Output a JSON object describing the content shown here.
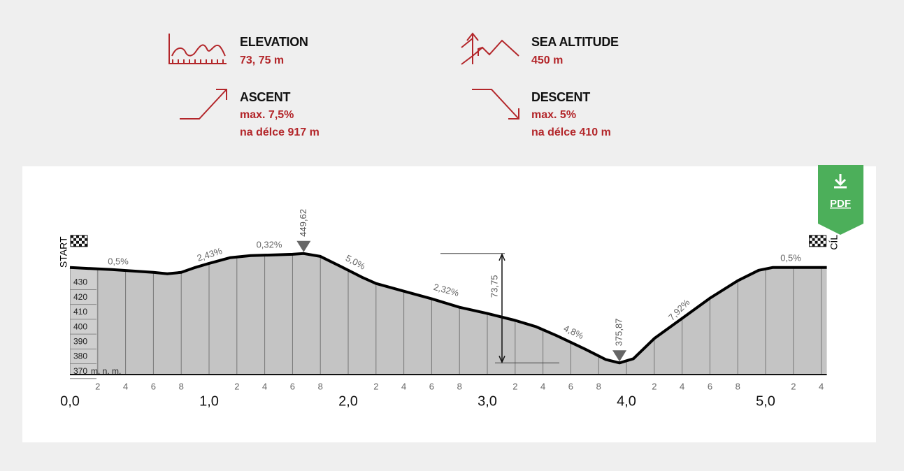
{
  "stats": [
    {
      "label": "ELEVATION",
      "lines": [
        "73, 75 m"
      ]
    },
    {
      "label": "SEA ALTITUDE",
      "lines": [
        "450 m"
      ]
    },
    {
      "label": "ASCENT",
      "lines": [
        "max. 7,5%",
        "na délce 917 m"
      ]
    },
    {
      "label": "DESCENT",
      "lines": [
        "max. 5%",
        "na délce 410 m"
      ]
    }
  ],
  "pdf": "PDF",
  "chart_data": {
    "type": "area",
    "start_label": "START",
    "end_label": "CÍL",
    "y_unit": "m. n. m.",
    "x": [
      0,
      0.3,
      0.6,
      0.7,
      0.8,
      0.9,
      1.0,
      1.15,
      1.3,
      1.6,
      1.68,
      1.8,
      1.95,
      2.1,
      2.2,
      2.4,
      2.6,
      2.8,
      3.0,
      3.2,
      3.35,
      3.5,
      3.7,
      3.85,
      3.95,
      4.05,
      4.2,
      4.4,
      4.6,
      4.8,
      4.95,
      5.05,
      5.44
    ],
    "values": [
      440.2,
      438.8,
      436.9,
      436.0,
      436.9,
      440.2,
      443.0,
      446.8,
      448.2,
      449.1,
      449.62,
      447.7,
      440.7,
      433.6,
      429.4,
      424.2,
      419.1,
      413.4,
      409.2,
      404.5,
      400.3,
      394.2,
      385.3,
      378.2,
      375.87,
      378.7,
      392.3,
      405.9,
      419.5,
      431.3,
      438.3,
      440.2,
      440.2
    ],
    "color": "#c4c4c4",
    "line_color": "#000000",
    "xlim": [
      0,
      5.44
    ],
    "ylim": [
      368,
      450
    ],
    "xticks": [
      {
        "value": 0,
        "label": "0,0"
      },
      {
        "value": 0.2,
        "label": "2"
      },
      {
        "value": 0.4,
        "label": "4"
      },
      {
        "value": 0.6,
        "label": "6"
      },
      {
        "value": 0.8,
        "label": "8"
      },
      {
        "value": 1,
        "label": "1,0"
      },
      {
        "value": 1.2,
        "label": "2"
      },
      {
        "value": 1.4,
        "label": "4"
      },
      {
        "value": 1.6,
        "label": "6"
      },
      {
        "value": 1.8,
        "label": "8"
      },
      {
        "value": 2,
        "label": "2,0"
      },
      {
        "value": 2.2,
        "label": "2"
      },
      {
        "value": 2.4,
        "label": "4"
      },
      {
        "value": 2.6,
        "label": "6"
      },
      {
        "value": 2.8,
        "label": "8"
      },
      {
        "value": 3,
        "label": "3,0"
      },
      {
        "value": 3.2,
        "label": "2"
      },
      {
        "value": 3.4,
        "label": "4"
      },
      {
        "value": 3.6,
        "label": "6"
      },
      {
        "value": 3.8,
        "label": "8"
      },
      {
        "value": 4,
        "label": "4,0"
      },
      {
        "value": 4.2,
        "label": "2"
      },
      {
        "value": 4.4,
        "label": "4"
      },
      {
        "value": 4.6,
        "label": "6"
      },
      {
        "value": 4.8,
        "label": "8"
      },
      {
        "value": 5,
        "label": "5,0"
      },
      {
        "value": 5.2,
        "label": "2"
      },
      {
        "value": 5.4,
        "label": "4"
      }
    ],
    "yticks": [
      430,
      420,
      410,
      400,
      390,
      380,
      370
    ],
    "grid": true,
    "grade_labels": [
      "0,5%",
      "2,43%",
      "0,32%",
      "5,0%",
      "2,32%",
      "4,8%",
      "7,92%",
      "0,5%"
    ],
    "markers": [
      {
        "x": 1.68,
        "value": 449.62,
        "label": "449,62"
      },
      {
        "x": 3.95,
        "value": 375.87,
        "label": "375,87"
      }
    ],
    "difference": {
      "value": 73.75,
      "label": "73,75"
    }
  }
}
